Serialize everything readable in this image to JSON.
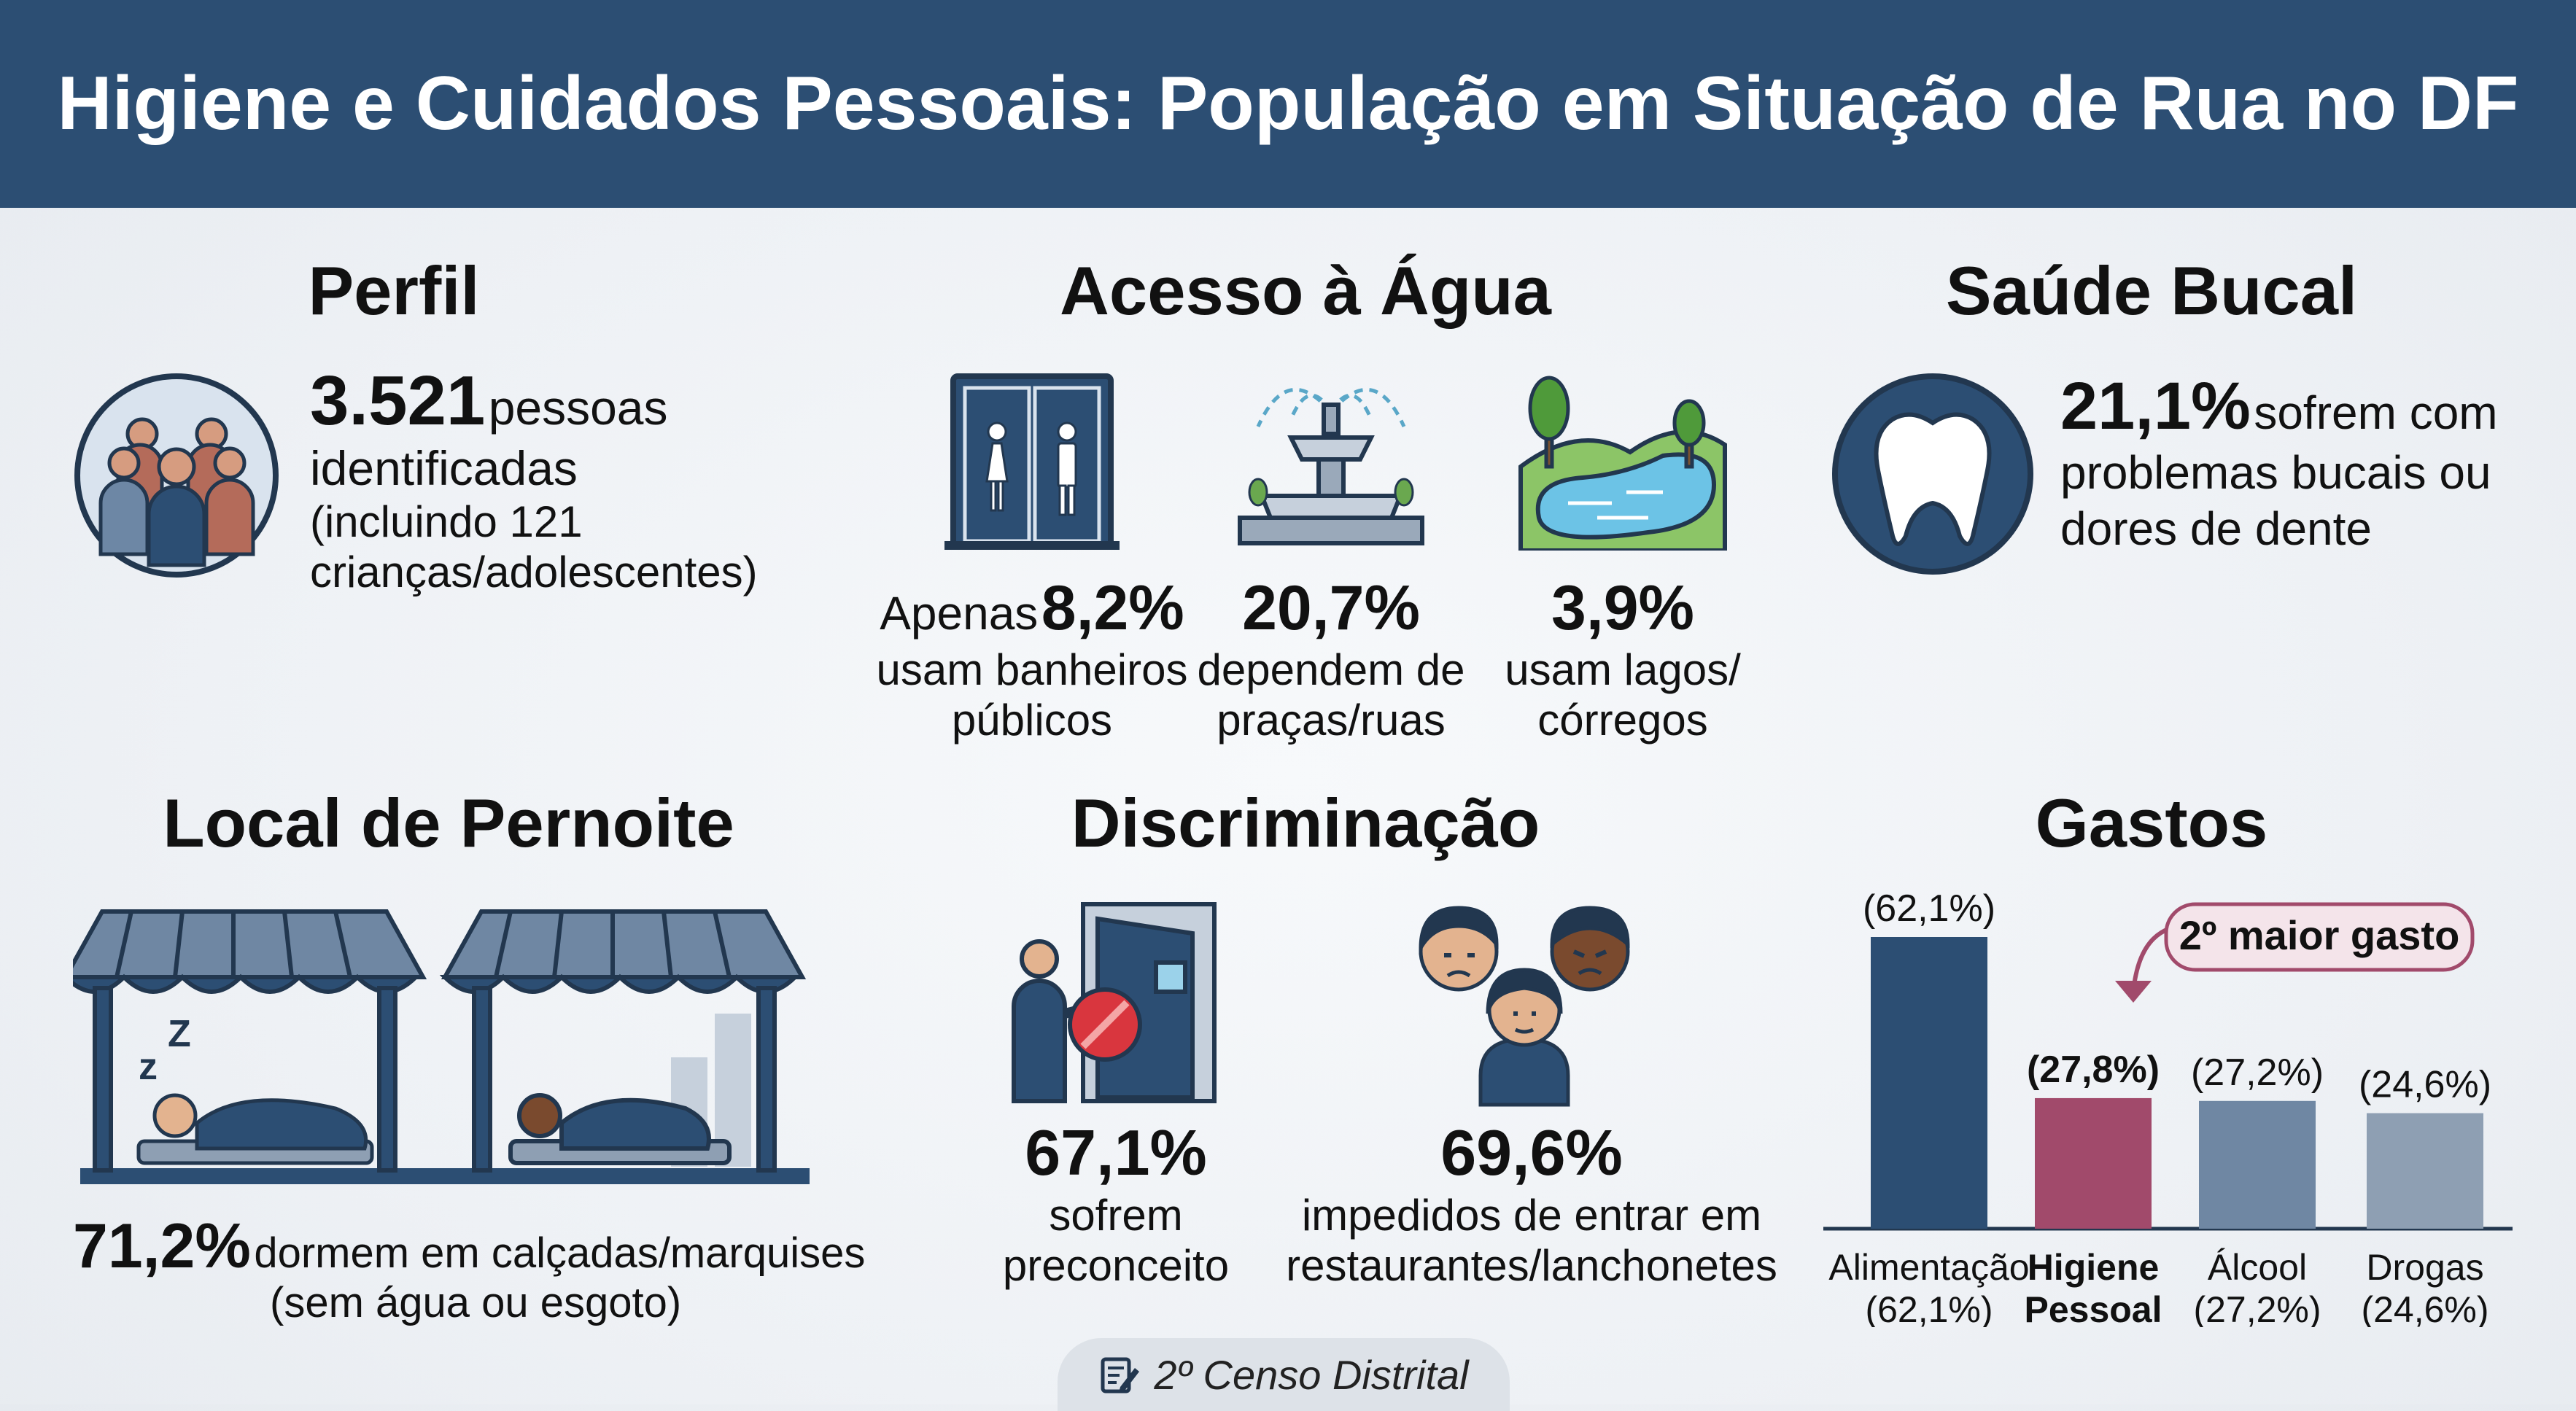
{
  "header": {
    "title": "Higiene e Cuidados Pessoais: População em Situação de Rua no DF"
  },
  "perfil": {
    "title": "Perfil",
    "number": "3.521",
    "unit": "pessoas",
    "line2": "identificadas",
    "line3": "(incluindo 121",
    "line4": "crianças/adolescentes)",
    "icon": "people-group-icon"
  },
  "agua": {
    "title": "Acesso à Água",
    "items": [
      {
        "prefix": "Apenas",
        "value": "8,2%",
        "line1": "usam banheiros",
        "line2": "públicos",
        "icon": "restroom-icon"
      },
      {
        "prefix": "",
        "value": "20,7%",
        "line1": "dependem de",
        "line2": "praças/ruas",
        "icon": "fountain-icon"
      },
      {
        "prefix": "",
        "value": "3,9%",
        "line1": "usam lagos/",
        "line2": "córregos",
        "icon": "lake-icon"
      }
    ]
  },
  "bucal": {
    "title": "Saúde Bucal",
    "value": "21,1%",
    "text1": "sofrem com",
    "text2": "problemas bucais ou",
    "text3": "dores de dente",
    "icon": "tooth-icon"
  },
  "pernoite": {
    "title": "Local de Pernoite",
    "value": "71,2%",
    "text1": "dormem em calçadas/marquises",
    "text2": "(sem água ou esgoto)",
    "icon": "sleeping-under-awning-icon"
  },
  "discriminacao": {
    "title": "Discriminação",
    "items": [
      {
        "value": "67,1%",
        "line1": "sofrem",
        "line2": "preconceito",
        "icon": "blocked-door-icon"
      },
      {
        "value": "69,6%",
        "line1": "impedidos de entrar em",
        "line2": "restaurantes/lanchonetes",
        "icon": "faces-icon"
      }
    ]
  },
  "gastos": {
    "title": "Gastos",
    "callout": "2º maior gasto",
    "colors": {
      "alimentacao": "#2c4e73",
      "higiene": "#a14a6b",
      "alcool": "#6f87a3",
      "drogas": "#8e9fb3"
    }
  },
  "chart_data": {
    "type": "bar",
    "title": "Gastos",
    "categories": [
      "Alimentação",
      "Higiene Pessoal",
      "Álcool",
      "Drogas"
    ],
    "category_lines": [
      [
        "Alimentação",
        "(62,1%)"
      ],
      [
        "Higiene",
        "Pessoal"
      ],
      [
        "Álcool",
        "(27,2%)"
      ],
      [
        "Drogas",
        "(24,6%)"
      ]
    ],
    "values": [
      62.1,
      27.8,
      27.2,
      24.6
    ],
    "data_labels": [
      "(62,1%)",
      "(27,8%)",
      "(27,2%)",
      "(24,6%)"
    ],
    "ylim": [
      0,
      62.1
    ],
    "grid": false,
    "highlight": "Higiene Pessoal"
  },
  "footer": {
    "label": "2º Censo Distrital",
    "icon": "notepad-pen-icon"
  }
}
